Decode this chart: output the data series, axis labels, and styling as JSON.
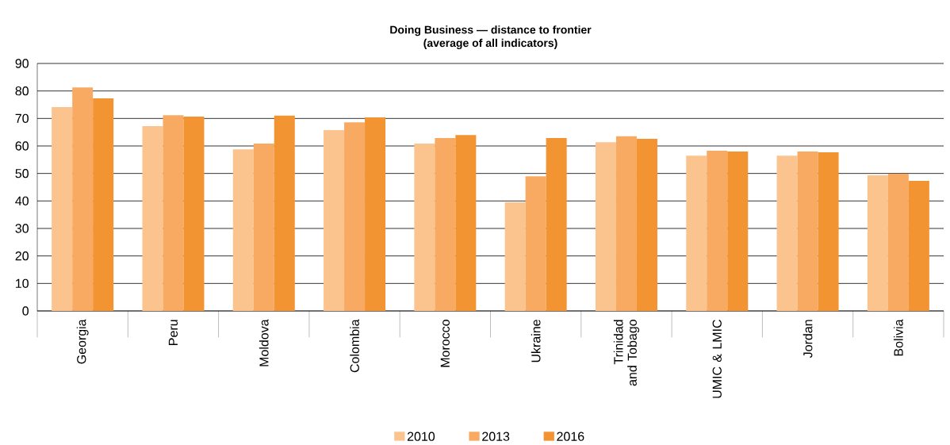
{
  "chart_data": {
    "type": "bar",
    "title": "Doing Business — distance to frontier\n(average of all indicators)",
    "categories": [
      "Georgia",
      "Peru",
      "Moldova",
      "Colombia",
      "Morocco",
      "Ukraine",
      "Trinidad and Tobago",
      "UMIC & LMIC",
      "Jordan",
      "Bolivia"
    ],
    "series": [
      {
        "name": "2010",
        "color": "#fbc48e",
        "values": [
          74.1,
          67.2,
          58.8,
          65.8,
          60.9,
          39.5,
          61.4,
          56.5,
          56.5,
          49.3
        ]
      },
      {
        "name": "2013",
        "color": "#f8aa63",
        "values": [
          81.3,
          71.2,
          60.9,
          68.6,
          62.9,
          49.0,
          63.5,
          58.3,
          58.0,
          49.9
        ]
      },
      {
        "name": "2016",
        "color": "#f39433",
        "values": [
          77.3,
          70.7,
          71.0,
          70.4,
          64.0,
          62.9,
          62.6,
          58.0,
          57.7,
          47.3
        ]
      }
    ],
    "ylim": [
      0,
      90
    ],
    "yticks": [
      0,
      10,
      20,
      30,
      40,
      50,
      60,
      70,
      80,
      90
    ],
    "grid": "y",
    "legend": "bottom"
  }
}
